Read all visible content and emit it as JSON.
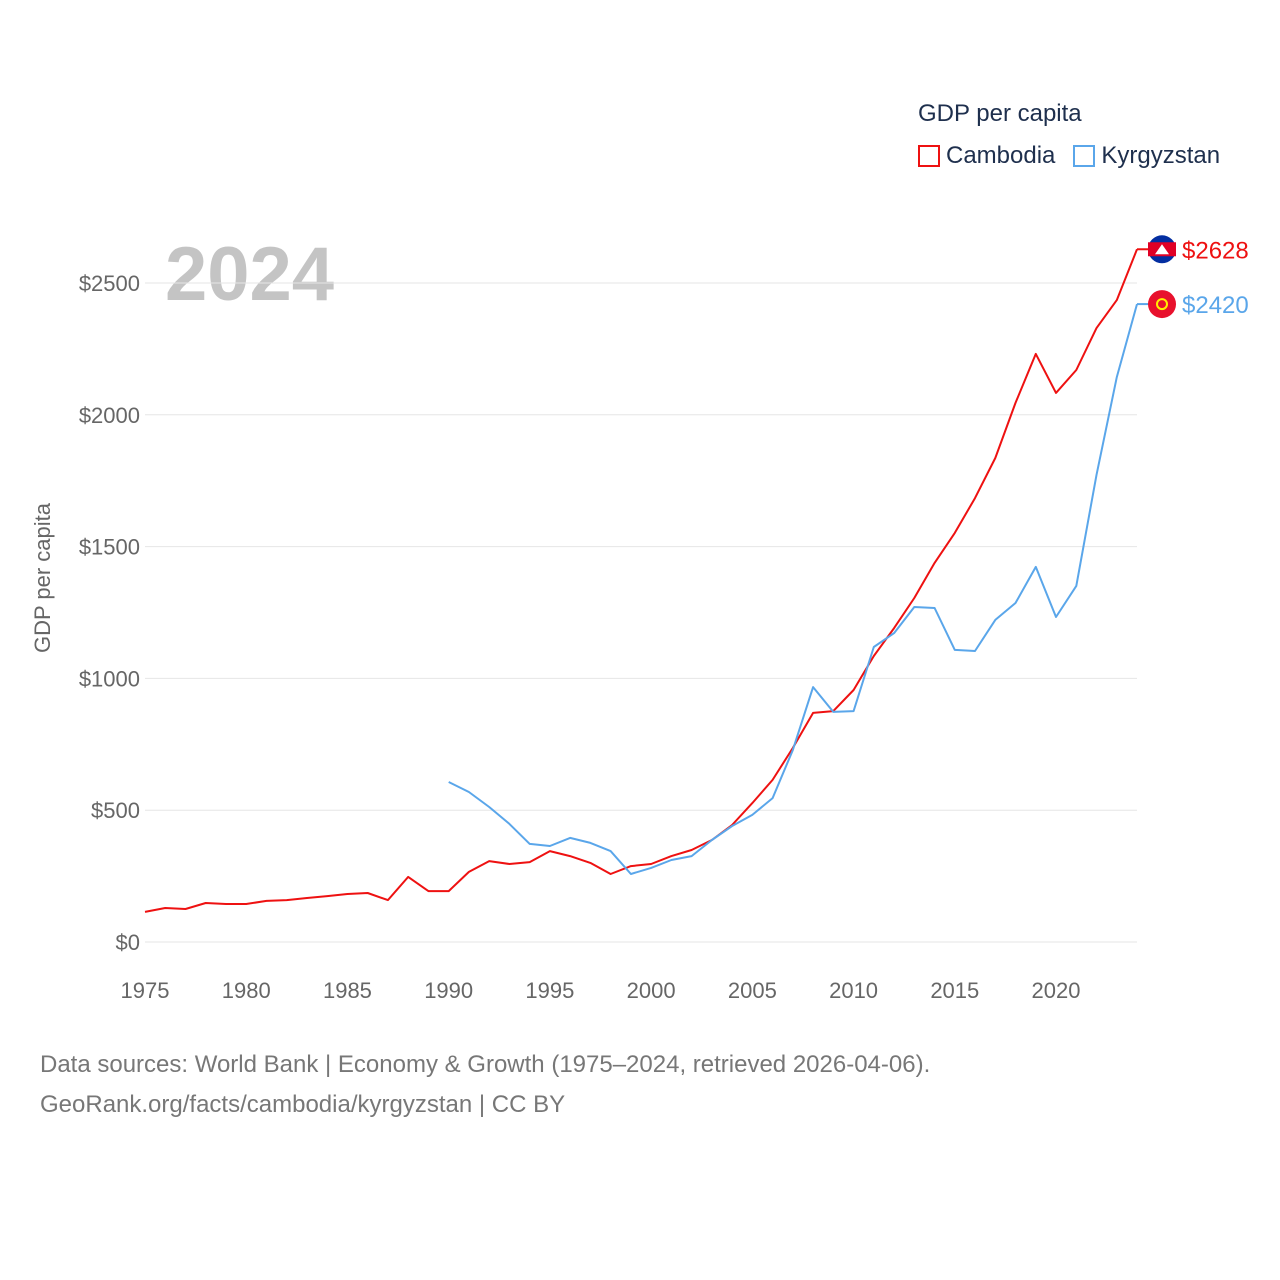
{
  "chart_data": {
    "type": "line",
    "title": "GDP per capita",
    "ylabel": "GDP per capita",
    "xlabel": "",
    "year_label": "2024",
    "xlim": [
      1975,
      2024
    ],
    "ylim": [
      0,
      2500
    ],
    "x_ticks": [
      "1975",
      "1980",
      "1985",
      "1990",
      "1995",
      "2000",
      "2005",
      "2010",
      "2015",
      "2020"
    ],
    "y_ticks": [
      "$0",
      "$500",
      "$1000",
      "$1500",
      "$2000",
      "$2500"
    ],
    "grid": true,
    "legend_position": "top-right",
    "series": [
      {
        "name": "Cambodia",
        "color": "#ee1111",
        "flag": "cambodia-flag",
        "end_label": "$2628",
        "start_year": 1975,
        "values": [
          114,
          129,
          125,
          148,
          144,
          144,
          156,
          159,
          167,
          174,
          182,
          186,
          159,
          247,
          193,
          193,
          266,
          307,
          296,
          303,
          345,
          326,
          300,
          258,
          288,
          296,
          326,
          349,
          387,
          444,
          527,
          615,
          736,
          869,
          876,
          956,
          1085,
          1191,
          1305,
          1438,
          1552,
          1684,
          1836,
          2045,
          2231,
          2083,
          2170,
          2329,
          2435,
          2628
        ]
      },
      {
        "name": "Kyrgyzstan",
        "color": "#5aa6ea",
        "flag": "kyrgyzstan-flag",
        "end_label": "$2420",
        "start_year": 1990,
        "values": [
          607,
          569,
          512,
          448,
          372,
          364,
          395,
          376,
          345,
          258,
          281,
          311,
          326,
          387,
          440,
          482,
          546,
          728,
          967,
          873,
          876,
          1119,
          1172,
          1271,
          1267,
          1108,
          1104,
          1222,
          1286,
          1423,
          1233,
          1351,
          1772,
          2143,
          2420
        ]
      }
    ]
  },
  "footer": {
    "line1": "Data sources: World Bank | Economy & Growth (1975–2024, retrieved 2026-04-06).",
    "line2": "GeoRank.org/facts/cambodia/kyrgyzstan | CC BY"
  }
}
